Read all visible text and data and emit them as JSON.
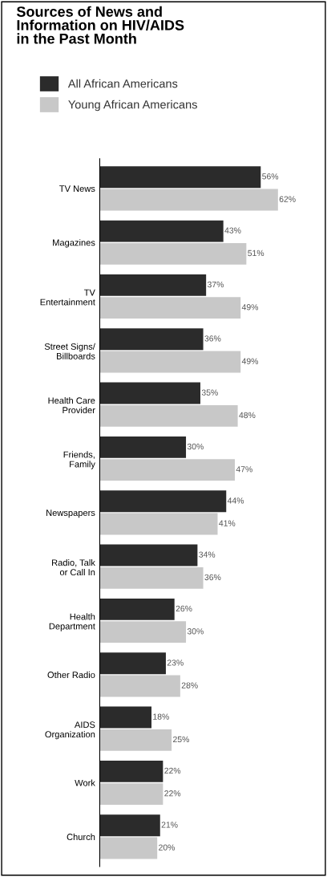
{
  "chart_data": {
    "type": "bar",
    "orientation": "horizontal",
    "title": "Sources of News and\nInformation on HIV/AIDS\nin the Past Month",
    "categories": [
      "TV News",
      "Magazines",
      "TV\nEntertainment",
      "Street Signs/\nBillboards",
      "Health Care\nProvider",
      "Friends,\nFamily",
      "Newspapers",
      "Radio, Talk\nor Call In",
      "Health\nDepartment",
      "Other Radio",
      "AIDS\nOrganization",
      "Work",
      "Church"
    ],
    "series": [
      {
        "name": "All African Americans",
        "color": "#2b2b2b",
        "values": [
          56,
          43,
          37,
          36,
          35,
          30,
          44,
          34,
          26,
          23,
          18,
          22,
          21
        ],
        "value_labels": [
          "56%",
          "43%",
          "37%",
          "36%",
          "35%",
          "30%",
          "44%",
          "34%",
          "26%",
          "23%",
          "18%",
          "22%",
          "21%"
        ]
      },
      {
        "name": "Young African Americans",
        "color": "#c8c8c8",
        "values": [
          62,
          51,
          49,
          49,
          48,
          47,
          41,
          36,
          30,
          28,
          25,
          22,
          20
        ],
        "value_labels": [
          "62%",
          "51%",
          "49%",
          "49%",
          "48%",
          "47%",
          "41%",
          "36%",
          "30%",
          "28%",
          "25%",
          "22%",
          "20%"
        ]
      }
    ],
    "legend": "top",
    "grid": false
  }
}
